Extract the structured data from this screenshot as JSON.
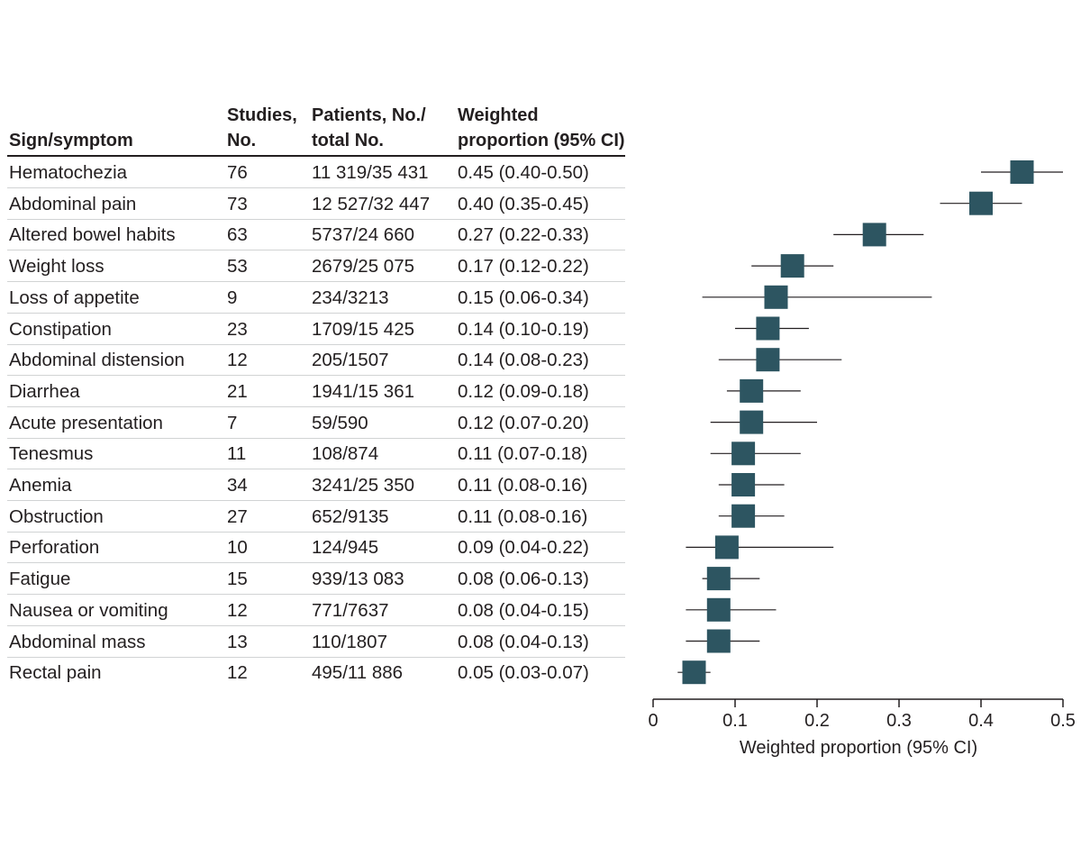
{
  "headers": {
    "sign_symptom": "Sign/symptom",
    "studies_l1": "Studies,",
    "studies_l2": "No.",
    "patients_l1": "Patients, No./",
    "patients_l2": "total No.",
    "weighted_l1": "Weighted",
    "weighted_l2": "proportion (95% CI)"
  },
  "rows": [
    {
      "sign": "Hematochezia",
      "studies": "76",
      "patients": "11 319/35 431",
      "weighted": "0.45 (0.40-0.50)"
    },
    {
      "sign": "Abdominal pain",
      "studies": "73",
      "patients": "12 527/32 447",
      "weighted": "0.40 (0.35-0.45)"
    },
    {
      "sign": "Altered bowel habits",
      "studies": "63",
      "patients": "5737/24 660",
      "weighted": "0.27 (0.22-0.33)"
    },
    {
      "sign": "Weight loss",
      "studies": "53",
      "patients": "2679/25 075",
      "weighted": "0.17 (0.12-0.22)"
    },
    {
      "sign": "Loss of appetite",
      "studies": "9",
      "patients": "234/3213",
      "weighted": "0.15 (0.06-0.34)"
    },
    {
      "sign": "Constipation",
      "studies": "23",
      "patients": "1709/15 425",
      "weighted": "0.14 (0.10-0.19)"
    },
    {
      "sign": "Abdominal distension",
      "studies": "12",
      "patients": "205/1507",
      "weighted": "0.14 (0.08-0.23)"
    },
    {
      "sign": "Diarrhea",
      "studies": "21",
      "patients": "1941/15 361",
      "weighted": "0.12 (0.09-0.18)"
    },
    {
      "sign": "Acute presentation",
      "studies": "7",
      "patients": "59/590",
      "weighted": "0.12 (0.07-0.20)"
    },
    {
      "sign": "Tenesmus",
      "studies": "11",
      "patients": "108/874",
      "weighted": "0.11 (0.07-0.18)"
    },
    {
      "sign": "Anemia",
      "studies": "34",
      "patients": "3241/25 350",
      "weighted": "0.11 (0.08-0.16)"
    },
    {
      "sign": "Obstruction",
      "studies": "27",
      "patients": "652/9135",
      "weighted": "0.11 (0.08-0.16)"
    },
    {
      "sign": "Perforation",
      "studies": "10",
      "patients": "124/945",
      "weighted": "0.09 (0.04-0.22)"
    },
    {
      "sign": "Fatigue",
      "studies": "15",
      "patients": "939/13 083",
      "weighted": "0.08 (0.06-0.13)"
    },
    {
      "sign": "Nausea or vomiting",
      "studies": "12",
      "patients": "771/7637",
      "weighted": "0.08 (0.04-0.15)"
    },
    {
      "sign": "Abdominal mass",
      "studies": "13",
      "patients": "110/1807",
      "weighted": "0.08 (0.04-0.13)"
    },
    {
      "sign": "Rectal pain",
      "studies": "12",
      "patients": "495/11 886",
      "weighted": "0.05 (0.03-0.07)"
    }
  ],
  "chart_data": {
    "type": "scatter",
    "subtype": "forest-plot",
    "title": "",
    "xlabel": "Weighted proportion (95% CI)",
    "ylabel": "",
    "xlim": [
      0,
      0.5
    ],
    "xticks": [
      0,
      0.1,
      0.2,
      0.3,
      0.4,
      0.5
    ],
    "xtick_labels": [
      "0",
      "0.1",
      "0.2",
      "0.3",
      "0.4",
      "0.5"
    ],
    "grid": false,
    "marker": "square",
    "marker_color": "#2d5561",
    "ci_line_color": "#231f20",
    "categories": [
      "Hematochezia",
      "Abdominal pain",
      "Altered bowel habits",
      "Weight loss",
      "Loss of appetite",
      "Constipation",
      "Abdominal distension",
      "Diarrhea",
      "Acute presentation",
      "Tenesmus",
      "Anemia",
      "Obstruction",
      "Perforation",
      "Fatigue",
      "Nausea or vomiting",
      "Abdominal mass",
      "Rectal pain"
    ],
    "estimates": [
      0.45,
      0.4,
      0.27,
      0.17,
      0.15,
      0.14,
      0.14,
      0.12,
      0.12,
      0.11,
      0.11,
      0.11,
      0.09,
      0.08,
      0.08,
      0.08,
      0.05
    ],
    "ci_low": [
      0.4,
      0.35,
      0.22,
      0.12,
      0.06,
      0.1,
      0.08,
      0.09,
      0.07,
      0.07,
      0.08,
      0.08,
      0.04,
      0.06,
      0.04,
      0.04,
      0.03
    ],
    "ci_high": [
      0.5,
      0.45,
      0.33,
      0.22,
      0.34,
      0.19,
      0.23,
      0.18,
      0.2,
      0.18,
      0.16,
      0.16,
      0.22,
      0.13,
      0.15,
      0.13,
      0.07
    ]
  }
}
